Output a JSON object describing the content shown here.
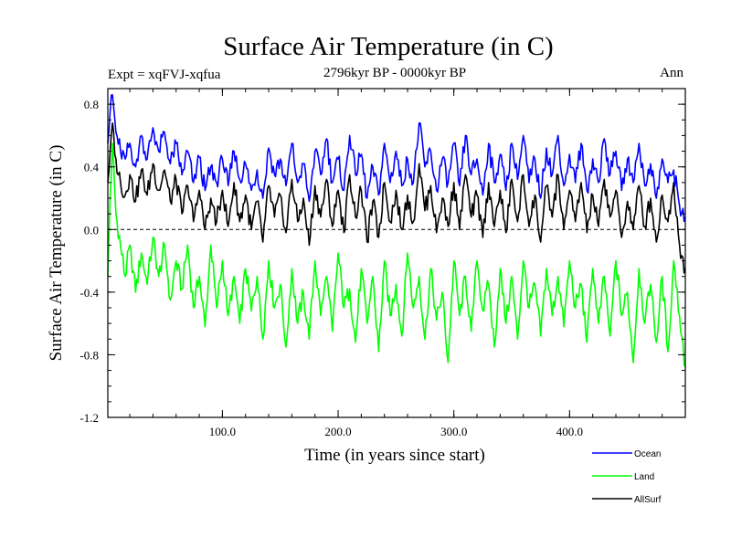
{
  "chart_data": {
    "type": "line",
    "title": "Surface Air Temperature (in C)",
    "subtitle": "2796kyr BP - 0000kyr BP",
    "expt_label": "Expt = xqFVJ-xqfua",
    "period_label": "Ann",
    "xlabel": "Time (in years since start)",
    "ylabel": "Surface Air Temperature (in C)",
    "xlim": [
      1,
      500
    ],
    "ylim": [
      -1.2,
      0.9
    ],
    "x_ticks": [
      {
        "value": 100,
        "label": "100.0"
      },
      {
        "value": 200,
        "label": "200.0"
      },
      {
        "value": 300,
        "label": "300.0"
      },
      {
        "value": 400,
        "label": "400.0"
      }
    ],
    "y_ticks": [
      {
        "value": 0.8,
        "label": "0.8"
      },
      {
        "value": 0.4,
        "label": "0.4"
      },
      {
        "value": 0.0,
        "label": "0.0"
      },
      {
        "value": -0.4,
        "label": "-0.4"
      },
      {
        "value": -0.8,
        "label": "-0.8"
      },
      {
        "value": -1.2,
        "label": "-1.2"
      }
    ],
    "zero_line": true,
    "legend_position": "bottom-right",
    "series": [
      {
        "name": "Ocean",
        "color": "#0000ff",
        "x": [
          1,
          3,
          5,
          8,
          12,
          16,
          20,
          25,
          30,
          35,
          40,
          45,
          50,
          55,
          60,
          65,
          70,
          75,
          80,
          85,
          90,
          95,
          100,
          105,
          110,
          115,
          120,
          125,
          130,
          135,
          140,
          145,
          150,
          155,
          160,
          165,
          170,
          175,
          180,
          185,
          190,
          195,
          200,
          205,
          210,
          215,
          220,
          225,
          230,
          235,
          240,
          245,
          250,
          255,
          260,
          265,
          270,
          275,
          280,
          285,
          290,
          295,
          300,
          305,
          310,
          315,
          320,
          325,
          330,
          335,
          340,
          345,
          350,
          355,
          360,
          365,
          370,
          375,
          380,
          385,
          390,
          395,
          400,
          405,
          410,
          415,
          420,
          425,
          430,
          435,
          440,
          445,
          450,
          455,
          460,
          465,
          470,
          475,
          480,
          485,
          490,
          495,
          500
        ],
        "values": [
          0.55,
          0.75,
          0.86,
          0.62,
          0.5,
          0.45,
          0.55,
          0.4,
          0.6,
          0.45,
          0.65,
          0.5,
          0.62,
          0.42,
          0.55,
          0.35,
          0.5,
          0.3,
          0.46,
          0.25,
          0.4,
          0.3,
          0.45,
          0.28,
          0.5,
          0.32,
          0.42,
          0.25,
          0.38,
          0.2,
          0.52,
          0.35,
          0.45,
          0.28,
          0.55,
          0.3,
          0.42,
          0.18,
          0.5,
          0.35,
          0.58,
          0.3,
          0.45,
          0.25,
          0.6,
          0.35,
          0.48,
          0.2,
          0.4,
          0.22,
          0.55,
          0.3,
          0.5,
          0.28,
          0.45,
          0.3,
          0.68,
          0.4,
          0.5,
          0.25,
          0.45,
          0.3,
          0.55,
          0.28,
          0.6,
          0.35,
          0.45,
          0.22,
          0.55,
          0.3,
          0.48,
          0.25,
          0.55,
          0.32,
          0.6,
          0.3,
          0.45,
          0.2,
          0.52,
          0.35,
          0.6,
          0.28,
          0.48,
          0.3,
          0.55,
          0.25,
          0.45,
          0.3,
          0.58,
          0.35,
          0.5,
          0.25,
          0.45,
          0.3,
          0.55,
          0.28,
          0.42,
          0.2,
          0.45,
          0.3,
          0.38,
          0.15,
          0.08
        ]
      },
      {
        "name": "Land",
        "color": "#00ff00",
        "x": [
          1,
          3,
          5,
          8,
          12,
          16,
          20,
          25,
          30,
          35,
          40,
          45,
          50,
          55,
          60,
          65,
          70,
          75,
          80,
          85,
          90,
          95,
          100,
          105,
          110,
          115,
          120,
          125,
          130,
          135,
          140,
          145,
          150,
          155,
          160,
          165,
          170,
          175,
          180,
          185,
          190,
          195,
          200,
          205,
          210,
          215,
          220,
          225,
          230,
          235,
          240,
          245,
          250,
          255,
          260,
          265,
          270,
          275,
          280,
          285,
          290,
          295,
          300,
          305,
          310,
          315,
          320,
          325,
          330,
          335,
          340,
          345,
          350,
          355,
          360,
          365,
          370,
          375,
          380,
          385,
          390,
          395,
          400,
          405,
          410,
          415,
          420,
          425,
          430,
          435,
          440,
          445,
          450,
          455,
          460,
          465,
          470,
          475,
          480,
          485,
          490,
          495,
          500
        ],
        "values": [
          -0.3,
          0.2,
          0.55,
          0.1,
          -0.1,
          -0.3,
          -0.1,
          -0.4,
          -0.15,
          -0.35,
          -0.05,
          -0.3,
          -0.1,
          -0.45,
          -0.2,
          -0.38,
          -0.1,
          -0.5,
          -0.3,
          -0.62,
          -0.1,
          -0.5,
          -0.2,
          -0.55,
          -0.3,
          -0.6,
          -0.25,
          -0.52,
          -0.3,
          -0.7,
          -0.2,
          -0.5,
          -0.35,
          -0.75,
          -0.25,
          -0.6,
          -0.4,
          -0.7,
          -0.2,
          -0.55,
          -0.3,
          -0.65,
          -0.15,
          -0.5,
          -0.38,
          -0.72,
          -0.25,
          -0.6,
          -0.3,
          -0.78,
          -0.2,
          -0.55,
          -0.35,
          -0.68,
          -0.15,
          -0.5,
          -0.3,
          -0.7,
          -0.25,
          -0.58,
          -0.4,
          -0.85,
          -0.2,
          -0.55,
          -0.3,
          -0.65,
          -0.2,
          -0.52,
          -0.35,
          -0.75,
          -0.25,
          -0.6,
          -0.3,
          -0.7,
          -0.2,
          -0.5,
          -0.35,
          -0.68,
          -0.25,
          -0.55,
          -0.3,
          -0.62,
          -0.2,
          -0.5,
          -0.35,
          -0.72,
          -0.25,
          -0.6,
          -0.3,
          -0.68,
          -0.2,
          -0.55,
          -0.4,
          -0.85,
          -0.25,
          -0.6,
          -0.35,
          -0.72,
          -0.3,
          -0.78,
          -0.2,
          -0.55,
          -0.88
        ]
      },
      {
        "name": "AllSurf",
        "color": "#000000",
        "x": [
          1,
          3,
          5,
          8,
          12,
          16,
          20,
          25,
          30,
          35,
          40,
          45,
          50,
          55,
          60,
          65,
          70,
          75,
          80,
          85,
          90,
          95,
          100,
          105,
          110,
          115,
          120,
          125,
          130,
          135,
          140,
          145,
          150,
          155,
          160,
          165,
          170,
          175,
          180,
          185,
          190,
          195,
          200,
          205,
          210,
          215,
          220,
          225,
          230,
          235,
          240,
          245,
          250,
          255,
          260,
          265,
          270,
          275,
          280,
          285,
          290,
          295,
          300,
          305,
          310,
          315,
          320,
          325,
          330,
          335,
          340,
          345,
          350,
          355,
          360,
          365,
          370,
          375,
          380,
          385,
          390,
          395,
          400,
          405,
          410,
          415,
          420,
          425,
          430,
          435,
          440,
          445,
          450,
          455,
          460,
          465,
          470,
          475,
          480,
          485,
          490,
          495,
          500
        ],
        "values": [
          0.3,
          0.5,
          0.68,
          0.45,
          0.3,
          0.22,
          0.35,
          0.18,
          0.38,
          0.22,
          0.42,
          0.25,
          0.38,
          0.18,
          0.32,
          0.1,
          0.28,
          0.05,
          0.25,
          0.0,
          0.2,
          0.05,
          0.25,
          0.02,
          0.3,
          0.05,
          0.22,
          0.0,
          0.18,
          -0.08,
          0.28,
          0.08,
          0.22,
          -0.02,
          0.32,
          0.05,
          0.2,
          -0.1,
          0.28,
          0.08,
          0.32,
          0.02,
          0.25,
          -0.02,
          0.35,
          0.08,
          0.25,
          -0.08,
          0.18,
          -0.05,
          0.3,
          0.05,
          0.25,
          0.0,
          0.22,
          0.05,
          0.42,
          0.12,
          0.28,
          -0.02,
          0.2,
          0.02,
          0.3,
          0.0,
          0.35,
          0.08,
          0.22,
          -0.05,
          0.3,
          0.02,
          0.25,
          -0.02,
          0.32,
          0.05,
          0.35,
          0.02,
          0.22,
          -0.08,
          0.28,
          0.08,
          0.35,
          0.0,
          0.25,
          0.05,
          0.3,
          -0.02,
          0.22,
          0.02,
          0.32,
          0.08,
          0.25,
          -0.05,
          0.18,
          0.0,
          0.28,
          0.02,
          0.2,
          -0.08,
          0.22,
          0.05,
          0.3,
          -0.1,
          -0.25
        ]
      }
    ]
  }
}
